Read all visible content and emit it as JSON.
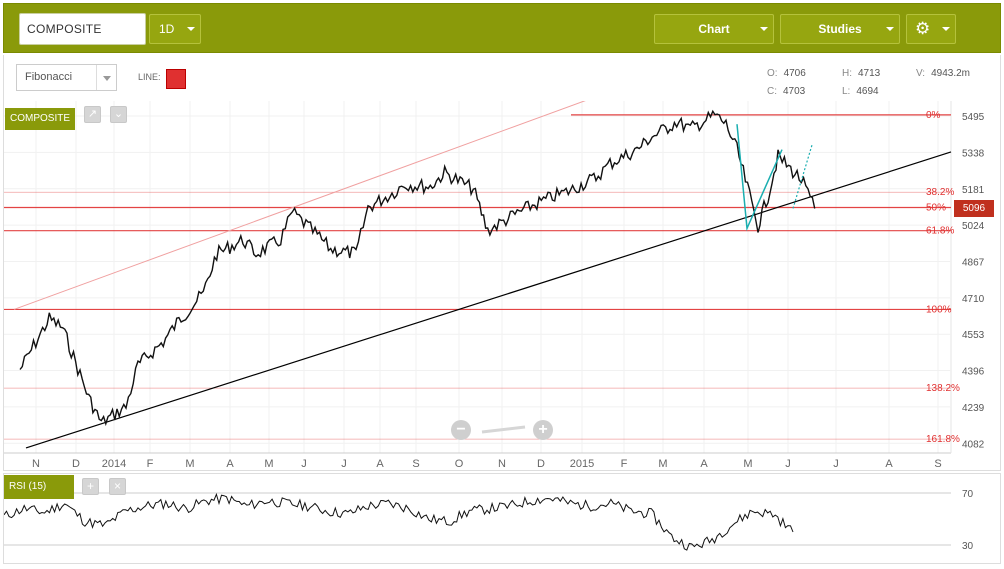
{
  "toolbar": {
    "symbol_value": "COMPOSITE",
    "period_label": "1D",
    "chart_label": "Chart",
    "studies_label": "Studies",
    "gear_icon": "gear-icon"
  },
  "drawbar": {
    "tool_select": "Fibonacci",
    "line_label": "LINE:",
    "line_color": "#e03030"
  },
  "ohlc": {
    "open_label": "O:",
    "open": "4706",
    "high_label": "H:",
    "high": "4713",
    "volume_label": "V:",
    "volume": "4943.2m",
    "close_label": "C:",
    "close": "4703",
    "low_label": "L:",
    "low": "4694"
  },
  "chart": {
    "symbol_tag": "COMPOSITE",
    "last_price": "5096",
    "zoom_out_icon": "minus-icon",
    "zoom_in_icon": "plus-icon"
  },
  "rsi": {
    "label": "RSI (15)",
    "add_icon": "plus-icon",
    "close_icon": "close-icon"
  },
  "colors": {
    "brand": "#8a9a0a",
    "fib": "#e03030",
    "trendline": "#000000",
    "channel": "#f0a0a0",
    "projection": "#1aaeb0",
    "price_badge": "#c0301e"
  },
  "chart_data": {
    "type": "line",
    "x_ticks": [
      "N",
      "D",
      "2014",
      "F",
      "M",
      "A",
      "M",
      "J",
      "J",
      "A",
      "S",
      "O",
      "N",
      "D",
      "2015",
      "F",
      "M",
      "A",
      "M",
      "J",
      "J",
      "A",
      "S"
    ],
    "y_ticks": [
      5495,
      5338,
      5181,
      5024,
      4867,
      4710,
      4553,
      4396,
      4239,
      4082
    ],
    "ylim": [
      4040,
      5560
    ],
    "fib_levels": [
      {
        "label": "0%",
        "price": 5500
      },
      {
        "label": "38.2%",
        "price": 5166
      },
      {
        "label": "50%",
        "price": 5100
      },
      {
        "label": "61.8%",
        "price": 5000
      },
      {
        "label": "100%",
        "price": 4660
      },
      {
        "label": "138.2%",
        "price": 4320
      },
      {
        "label": "161.8%",
        "price": 4100
      }
    ],
    "price_series": [
      [
        "Oct 2013",
        4400
      ],
      [
        "Nov 2013",
        4620
      ],
      [
        "Nov 2013",
        4580
      ],
      [
        "Dec 2013",
        4280
      ],
      [
        "Dec 2013",
        4170
      ],
      [
        "Jan 2014",
        4240
      ],
      [
        "Jan 2014",
        4420
      ],
      [
        "Feb 2014",
        4520
      ],
      [
        "Feb 2014",
        4600
      ],
      [
        "Mar 2014",
        4730
      ],
      [
        "Mar 2014",
        4900
      ],
      [
        "Apr 2014",
        4960
      ],
      [
        "Apr 2014",
        4900
      ],
      [
        "May 2014",
        4960
      ],
      [
        "May 2014",
        5080
      ],
      [
        "Jun 2014",
        4980
      ],
      [
        "Jun 2014",
        4920
      ],
      [
        "Jul 2014",
        4900
      ],
      [
        "Jul 2014",
        5100
      ],
      [
        "Aug 2014",
        5160
      ],
      [
        "Aug 2014",
        5200
      ],
      [
        "Sep 2014",
        5190
      ],
      [
        "Sep 2014",
        5250
      ],
      [
        "Oct 2014",
        5180
      ],
      [
        "Oct 2014",
        5000
      ],
      [
        "Nov 2014",
        5070
      ],
      [
        "Nov 2014",
        5100
      ],
      [
        "Dec 2014",
        5150
      ],
      [
        "Dec 2014",
        5170
      ],
      [
        "Jan 2015",
        5230
      ],
      [
        "Jan 2015",
        5290
      ],
      [
        "Feb 2015",
        5350
      ],
      [
        "Feb 2015",
        5400
      ],
      [
        "Mar 2015",
        5470
      ],
      [
        "Mar 2015",
        5440
      ],
      [
        "Apr 2015",
        5500
      ],
      [
        "Apr 2015",
        5460
      ],
      [
        "Apr 2015",
        5350
      ],
      [
        "May 2015",
        5020
      ],
      [
        "May 2015",
        5150
      ],
      [
        "May 2015",
        5320
      ],
      [
        "Jun 2015",
        5220
      ],
      [
        "Jun 2015",
        5096
      ]
    ],
    "rsi_levels": [
      70,
      30
    ],
    "rsi_series": [
      52,
      58,
      55,
      62,
      48,
      45,
      56,
      60,
      62,
      58,
      64,
      66,
      60,
      64,
      62,
      60,
      56,
      54,
      60,
      62,
      58,
      50,
      48,
      56,
      58,
      60,
      64,
      66,
      62,
      60,
      62,
      56,
      54,
      36,
      28,
      34,
      46,
      56,
      54,
      40
    ]
  }
}
